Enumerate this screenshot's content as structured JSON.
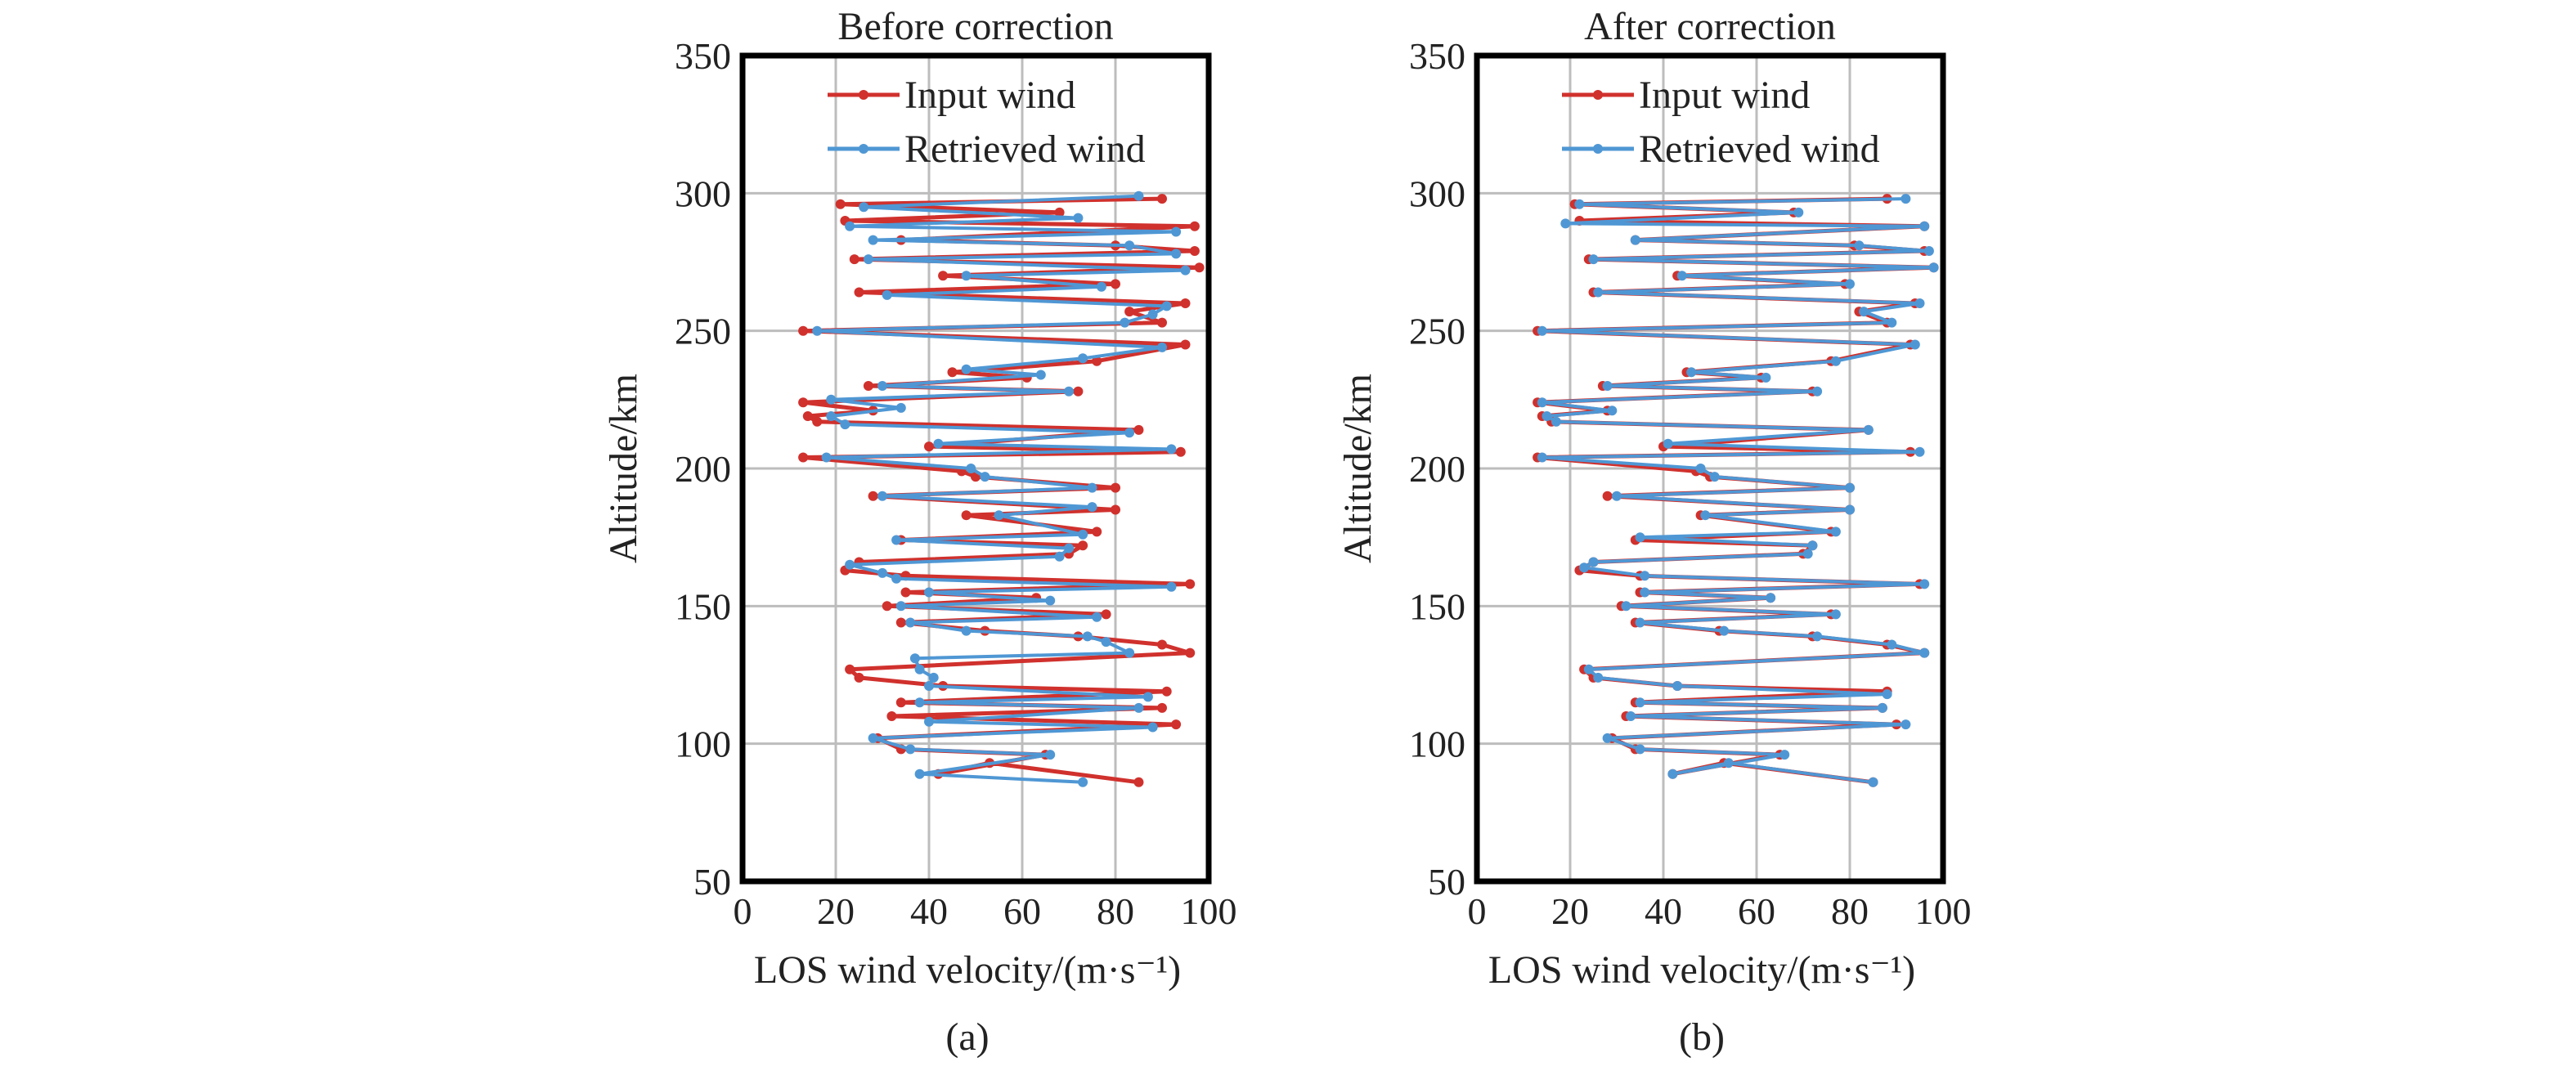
{
  "chart_data": [
    {
      "type": "line",
      "title": "Before correction",
      "xlabel": "LOS wind velocity/(m·s⁻¹)",
      "ylabel": "Altitude/km",
      "panel_label": "(a)",
      "xlim": [
        0,
        100
      ],
      "ylim": [
        50,
        350
      ],
      "xticks": [
        0,
        20,
        40,
        60,
        80,
        100
      ],
      "yticks": [
        50,
        100,
        150,
        200,
        250,
        300,
        350
      ],
      "grid": true,
      "legend_position": "top",
      "series": [
        {
          "name": "Input wind",
          "color": "#d0312d",
          "points": [
            [
              85,
              86
            ],
            [
              53,
              93
            ],
            [
              42,
              89
            ],
            [
              65,
              96
            ],
            [
              34,
              98
            ],
            [
              29,
              102
            ],
            [
              93,
              107
            ],
            [
              32,
              110
            ],
            [
              90,
              113
            ],
            [
              34,
              115
            ],
            [
              91,
              119
            ],
            [
              43,
              121
            ],
            [
              25,
              124
            ],
            [
              23,
              127
            ],
            [
              96,
              133
            ],
            [
              90,
              136
            ],
            [
              72,
              139
            ],
            [
              52,
              141
            ],
            [
              34,
              144
            ],
            [
              78,
              147
            ],
            [
              31,
              150
            ],
            [
              63,
              153
            ],
            [
              35,
              155
            ],
            [
              96,
              158
            ],
            [
              35,
              161
            ],
            [
              22,
              163
            ],
            [
              25,
              166
            ],
            [
              70,
              169
            ],
            [
              73,
              172
            ],
            [
              34,
              174
            ],
            [
              76,
              177
            ],
            [
              48,
              183
            ],
            [
              80,
              185
            ],
            [
              28,
              190
            ],
            [
              80,
              193
            ],
            [
              50,
              197
            ],
            [
              47,
              199
            ],
            [
              13,
              204
            ],
            [
              94,
              206
            ],
            [
              40,
              208
            ],
            [
              85,
              214
            ],
            [
              16,
              217
            ],
            [
              14,
              219
            ],
            [
              28,
              221
            ],
            [
              13,
              224
            ],
            [
              72,
              228
            ],
            [
              27,
              230
            ],
            [
              61,
              233
            ],
            [
              45,
              235
            ],
            [
              76,
              239
            ],
            [
              95,
              245
            ],
            [
              13,
              250
            ],
            [
              90,
              253
            ],
            [
              83,
              257
            ],
            [
              95,
              260
            ],
            [
              25,
              264
            ],
            [
              80,
              267
            ],
            [
              43,
              270
            ],
            [
              98,
              273
            ],
            [
              24,
              276
            ],
            [
              97,
              279
            ],
            [
              80,
              281
            ],
            [
              34,
              283
            ],
            [
              97,
              288
            ],
            [
              22,
              290
            ],
            [
              68,
              293
            ],
            [
              21,
              296
            ],
            [
              90,
              298
            ]
          ]
        },
        {
          "name": "Retrieved wind",
          "color": "#4f97d4",
          "points": [
            [
              73,
              86
            ],
            [
              38,
              89
            ],
            [
              66,
              96
            ],
            [
              36,
              98
            ],
            [
              28,
              102
            ],
            [
              88,
              106
            ],
            [
              40,
              108
            ],
            [
              85,
              113
            ],
            [
              38,
              115
            ],
            [
              87,
              117
            ],
            [
              40,
              121
            ],
            [
              41,
              124
            ],
            [
              38,
              127
            ],
            [
              37,
              131
            ],
            [
              83,
              133
            ],
            [
              78,
              137
            ],
            [
              74,
              139
            ],
            [
              48,
              141
            ],
            [
              36,
              144
            ],
            [
              76,
              146
            ],
            [
              34,
              150
            ],
            [
              66,
              152
            ],
            [
              40,
              155
            ],
            [
              92,
              157
            ],
            [
              33,
              160
            ],
            [
              30,
              162
            ],
            [
              23,
              165
            ],
            [
              68,
              168
            ],
            [
              70,
              171
            ],
            [
              33,
              174
            ],
            [
              73,
              176
            ],
            [
              55,
              183
            ],
            [
              75,
              186
            ],
            [
              30,
              190
            ],
            [
              75,
              193
            ],
            [
              52,
              197
            ],
            [
              49,
              200
            ],
            [
              18,
              204
            ],
            [
              92,
              207
            ],
            [
              42,
              209
            ],
            [
              83,
              213
            ],
            [
              22,
              216
            ],
            [
              19,
              219
            ],
            [
              34,
              222
            ],
            [
              19,
              225
            ],
            [
              70,
              228
            ],
            [
              30,
              230
            ],
            [
              64,
              234
            ],
            [
              48,
              236
            ],
            [
              73,
              240
            ],
            [
              90,
              244
            ],
            [
              16,
              250
            ],
            [
              82,
              253
            ],
            [
              88,
              256
            ],
            [
              91,
              259
            ],
            [
              31,
              263
            ],
            [
              77,
              266
            ],
            [
              48,
              270
            ],
            [
              95,
              272
            ],
            [
              27,
              276
            ],
            [
              93,
              278
            ],
            [
              83,
              281
            ],
            [
              28,
              283
            ],
            [
              93,
              286
            ],
            [
              23,
              288
            ],
            [
              72,
              291
            ],
            [
              26,
              295
            ],
            [
              85,
              299
            ]
          ]
        }
      ]
    },
    {
      "type": "line",
      "title": "After correction",
      "xlabel": "LOS wind velocity/(m·s⁻¹)",
      "ylabel": "Altitude/km",
      "panel_label": "(b)",
      "xlim": [
        0,
        100
      ],
      "ylim": [
        50,
        350
      ],
      "xticks": [
        0,
        20,
        40,
        60,
        80,
        100
      ],
      "yticks": [
        50,
        100,
        150,
        200,
        250,
        300,
        350
      ],
      "grid": true,
      "legend_position": "top",
      "series": [
        {
          "name": "Input wind",
          "color": "#d0312d",
          "points": [
            [
              85,
              86
            ],
            [
              53,
              93
            ],
            [
              42,
              89
            ],
            [
              65,
              96
            ],
            [
              34,
              98
            ],
            [
              29,
              102
            ],
            [
              90,
              107
            ],
            [
              32,
              110
            ],
            [
              87,
              113
            ],
            [
              34,
              115
            ],
            [
              88,
              119
            ],
            [
              43,
              121
            ],
            [
              25,
              124
            ],
            [
              23,
              127
            ],
            [
              96,
              133
            ],
            [
              88,
              136
            ],
            [
              72,
              139
            ],
            [
              52,
              141
            ],
            [
              34,
              144
            ],
            [
              76,
              147
            ],
            [
              31,
              150
            ],
            [
              63,
              153
            ],
            [
              35,
              155
            ],
            [
              95,
              158
            ],
            [
              35,
              161
            ],
            [
              22,
              163
            ],
            [
              25,
              166
            ],
            [
              70,
              169
            ],
            [
              72,
              172
            ],
            [
              34,
              174
            ],
            [
              76,
              177
            ],
            [
              48,
              183
            ],
            [
              80,
              185
            ],
            [
              28,
              190
            ],
            [
              80,
              193
            ],
            [
              50,
              197
            ],
            [
              47,
              199
            ],
            [
              13,
              204
            ],
            [
              93,
              206
            ],
            [
              40,
              208
            ],
            [
              84,
              214
            ],
            [
              16,
              217
            ],
            [
              14,
              219
            ],
            [
              28,
              221
            ],
            [
              13,
              224
            ],
            [
              72,
              228
            ],
            [
              27,
              230
            ],
            [
              61,
              233
            ],
            [
              45,
              235
            ],
            [
              76,
              239
            ],
            [
              93,
              245
            ],
            [
              13,
              250
            ],
            [
              88,
              253
            ],
            [
              82,
              257
            ],
            [
              94,
              260
            ],
            [
              25,
              264
            ],
            [
              79,
              267
            ],
            [
              43,
              270
            ],
            [
              98,
              273
            ],
            [
              24,
              276
            ],
            [
              96,
              279
            ],
            [
              81,
              281
            ],
            [
              34,
              283
            ],
            [
              96,
              288
            ],
            [
              22,
              290
            ],
            [
              68,
              293
            ],
            [
              21,
              296
            ],
            [
              88,
              298
            ]
          ]
        },
        {
          "name": "Retrieved wind",
          "color": "#4f97d4",
          "points": [
            [
              85,
              86
            ],
            [
              54,
              93
            ],
            [
              42,
              89
            ],
            [
              66,
              96
            ],
            [
              35,
              98
            ],
            [
              28,
              102
            ],
            [
              92,
              107
            ],
            [
              33,
              110
            ],
            [
              87,
              113
            ],
            [
              35,
              115
            ],
            [
              88,
              118
            ],
            [
              43,
              121
            ],
            [
              26,
              124
            ],
            [
              24,
              127
            ],
            [
              96,
              133
            ],
            [
              89,
              136
            ],
            [
              73,
              139
            ],
            [
              53,
              141
            ],
            [
              35,
              144
            ],
            [
              77,
              147
            ],
            [
              32,
              150
            ],
            [
              63,
              153
            ],
            [
              36,
              155
            ],
            [
              96,
              158
            ],
            [
              36,
              161
            ],
            [
              23,
              164
            ],
            [
              25,
              166
            ],
            [
              71,
              169
            ],
            [
              72,
              172
            ],
            [
              35,
              175
            ],
            [
              77,
              177
            ],
            [
              49,
              183
            ],
            [
              80,
              185
            ],
            [
              30,
              190
            ],
            [
              80,
              193
            ],
            [
              51,
              197
            ],
            [
              48,
              200
            ],
            [
              14,
              204
            ],
            [
              95,
              206
            ],
            [
              41,
              209
            ],
            [
              84,
              214
            ],
            [
              17,
              217
            ],
            [
              15,
              219
            ],
            [
              29,
              221
            ],
            [
              14,
              224
            ],
            [
              73,
              228
            ],
            [
              28,
              230
            ],
            [
              62,
              233
            ],
            [
              46,
              235
            ],
            [
              77,
              239
            ],
            [
              94,
              245
            ],
            [
              14,
              250
            ],
            [
              89,
              253
            ],
            [
              83,
              257
            ],
            [
              95,
              260
            ],
            [
              26,
              264
            ],
            [
              80,
              267
            ],
            [
              44,
              270
            ],
            [
              98,
              273
            ],
            [
              25,
              276
            ],
            [
              97,
              279
            ],
            [
              82,
              281
            ],
            [
              34,
              283
            ],
            [
              96,
              288
            ],
            [
              19,
              289
            ],
            [
              69,
              293
            ],
            [
              22,
              296
            ],
            [
              92,
              298
            ]
          ]
        }
      ]
    }
  ]
}
